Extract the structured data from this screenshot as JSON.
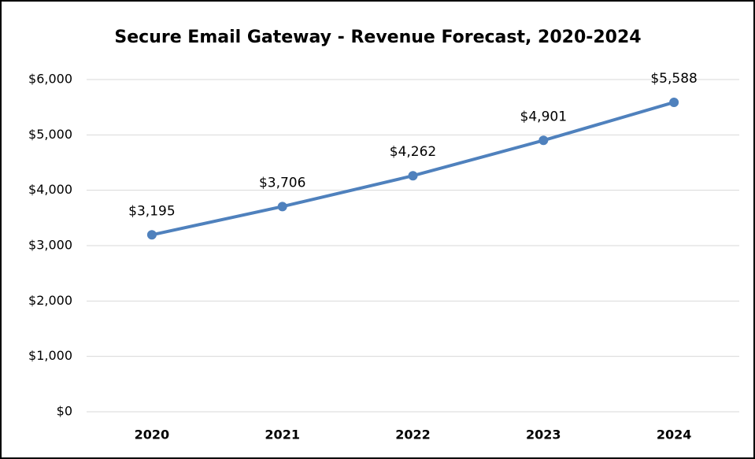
{
  "chart_data": {
    "type": "line",
    "title": "Secure Email Gateway - Revenue Forecast, 2020-2024",
    "categories": [
      "2020",
      "2021",
      "2022",
      "2023",
      "2024"
    ],
    "series": [
      {
        "name": "Revenue",
        "color": "#4f81bd",
        "values": [
          3195,
          3706,
          4262,
          4901,
          5588
        ],
        "value_labels": [
          "$3,195",
          "$3,706",
          "$4,262",
          "$4,901",
          "$5,588"
        ]
      }
    ],
    "ylim": [
      0,
      6000
    ],
    "yticks": [
      {
        "value": 0,
        "label": "$0"
      },
      {
        "value": 1000,
        "label": "$1,000"
      },
      {
        "value": 2000,
        "label": "$2,000"
      },
      {
        "value": 3000,
        "label": "$3,000"
      },
      {
        "value": 4000,
        "label": "$4,000"
      },
      {
        "value": 5000,
        "label": "$5,000"
      },
      {
        "value": 6000,
        "label": "$6,000"
      }
    ],
    "grid": true
  }
}
